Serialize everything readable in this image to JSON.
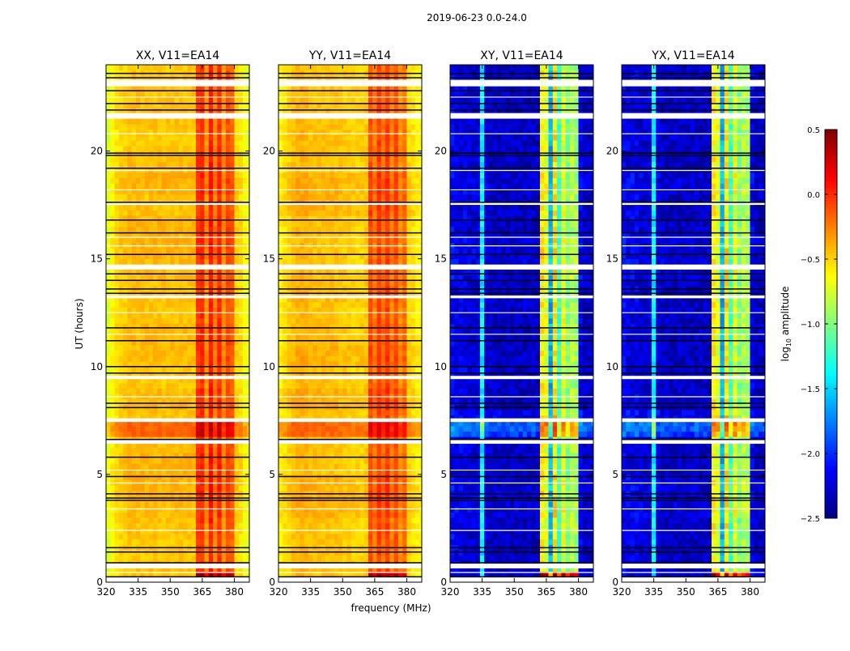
{
  "chart_data": {
    "type": "heatmap",
    "title": "2019-06-23 0.0-24.0",
    "xlabel": "frequency (MHz)",
    "ylabel": "UT (hours)",
    "xlim": [
      320,
      387
    ],
    "ylim": [
      0,
      24
    ],
    "xticks": [
      "320",
      "335",
      "350",
      "365",
      "380"
    ],
    "xtick_values": [
      320,
      335,
      350,
      365,
      380
    ],
    "yticks": [
      "0",
      "5",
      "10",
      "15",
      "20"
    ],
    "ytick_values": [
      0,
      5,
      10,
      15,
      20
    ],
    "freq_bin_centers_mhz": [
      321,
      323,
      325,
      327,
      329,
      331,
      333,
      335,
      337,
      339,
      341,
      343,
      345,
      347,
      349,
      351,
      353,
      355,
      357,
      359,
      361,
      363,
      365,
      367,
      369,
      371,
      373,
      375,
      377,
      379,
      381,
      383,
      385,
      387
    ],
    "time_bin_hours": 0.25,
    "colorbar": {
      "label": "log10 amplitude",
      "label_main": "log",
      "label_sub": "10",
      "label_rest": " amplitude",
      "colormap": "jet",
      "vmin": -2.5,
      "vmax": 0.5,
      "ticks": [
        "0.5",
        "0.0",
        "−0.5",
        "−1.0",
        "−1.5",
        "−2.0",
        "−2.5"
      ],
      "tick_values": [
        0.5,
        0.0,
        -0.5,
        -1.0,
        -1.5,
        -2.0,
        -2.5
      ]
    },
    "flagged_hours": [
      [
        0.0,
        0.24
      ],
      [
        0.64,
        0.86
      ],
      [
        6.42,
        6.6
      ],
      [
        7.43,
        7.6
      ],
      [
        9.42,
        9.57
      ],
      [
        13.17,
        13.3
      ],
      [
        14.56,
        14.7
      ],
      [
        17.5,
        17.6
      ],
      [
        21.58,
        21.76
      ],
      [
        23.1,
        23.3
      ]
    ],
    "black_lines_hours": [
      0.25,
      0.9,
      1.4,
      1.6,
      3.8,
      3.9,
      4.1,
      4.9,
      5.8,
      6.62,
      8.1,
      8.3,
      9.7,
      10.0,
      11.2,
      11.8,
      13.4,
      13.6,
      14.0,
      14.3,
      15.2,
      16.2,
      16.8,
      17.62,
      19.2,
      19.8,
      19.9,
      21.9,
      22.2,
      22.8,
      23.4,
      23.6
    ],
    "white_lines_hours": [
      0.45,
      2.4,
      3.4,
      4.6,
      5.2,
      8.6,
      11.5,
      12.5,
      15.6,
      16.0,
      18.2,
      19.1,
      20.8,
      22.5
    ],
    "panels": [
      {
        "title": "XX, V11=EA14",
        "spectrum": [
          -0.72,
          -0.62,
          -0.55,
          -0.5,
          -0.48,
          -0.45,
          -0.45,
          -0.45,
          -0.45,
          -0.45,
          -0.45,
          -0.45,
          -0.45,
          -0.45,
          -0.45,
          -0.45,
          -0.45,
          -0.45,
          -0.45,
          -0.45,
          -0.45,
          -0.05,
          0.0,
          -0.3,
          0.05,
          -0.25,
          0.0,
          -0.3,
          -0.1,
          -0.15,
          -0.5,
          -0.55,
          -0.65,
          -0.72
        ],
        "hour_offset": [
          0.0,
          -0.02,
          0.0,
          0.02,
          0.05,
          0.05,
          0.02,
          0.0,
          0.02,
          -0.02,
          0.02,
          0.03,
          0.0,
          0.0,
          0.02,
          0.05,
          0.04,
          0.0,
          0.05,
          0.02,
          -0.02,
          0.0,
          0.0,
          -0.02
        ],
        "events": [
          {
            "from": 0.25,
            "to": 0.62,
            "scope": "band",
            "delta": 0.45
          },
          {
            "from": 6.7,
            "to": 7.4,
            "scope": "all",
            "delta": 0.28
          }
        ]
      },
      {
        "title": "YY, V11=EA14",
        "spectrum": [
          -0.6,
          -0.55,
          -0.5,
          -0.45,
          -0.42,
          -0.4,
          -0.42,
          -0.45,
          -0.45,
          -0.45,
          -0.45,
          -0.45,
          -0.45,
          -0.45,
          -0.47,
          -0.48,
          -0.48,
          -0.5,
          -0.5,
          -0.5,
          -0.48,
          -0.1,
          -0.25,
          -0.05,
          -0.2,
          -0.05,
          -0.25,
          -0.1,
          -0.3,
          -0.2,
          -0.5,
          -0.55,
          -0.6,
          -0.62
        ],
        "hour_offset": [
          0.0,
          0.0,
          0.0,
          0.05,
          0.05,
          0.0,
          0.0,
          0.0,
          0.05,
          0.0,
          0.05,
          0.02,
          0.0,
          0.02,
          0.0,
          0.0,
          0.0,
          0.05,
          0.05,
          0.0,
          0.0,
          0.0,
          0.0,
          -0.02
        ],
        "events": [
          {
            "from": 0.25,
            "to": 0.62,
            "scope": "band",
            "delta": 0.45
          },
          {
            "from": 6.7,
            "to": 7.4,
            "scope": "all",
            "delta": 0.28
          }
        ]
      },
      {
        "title": "XY, V11=EA14",
        "spectrum": [
          -2.15,
          -2.2,
          -2.2,
          -2.2,
          -2.25,
          -2.25,
          -2.25,
          -1.4,
          -2.25,
          -2.3,
          -2.3,
          -2.3,
          -2.3,
          -2.3,
          -2.3,
          -2.3,
          -2.3,
          -2.3,
          -2.3,
          -2.3,
          -2.3,
          -0.6,
          -0.7,
          -1.6,
          -0.55,
          -1.2,
          -0.7,
          -1.0,
          -0.85,
          -0.9,
          -2.2,
          -2.3,
          -2.3,
          -2.3
        ],
        "hour_offset": [
          0.0,
          0.0,
          0.0,
          0.05,
          0.05,
          0.0,
          0.0,
          0.1,
          0.0,
          0.0,
          0.0,
          0.0,
          0.0,
          0.0,
          0.05,
          0.05,
          0.0,
          0.0,
          0.05,
          0.0,
          0.0,
          0.0,
          0.0,
          0.0
        ],
        "events": [
          {
            "from": 0.25,
            "to": 0.62,
            "scope": "band",
            "delta": 1.0
          },
          {
            "from": 6.7,
            "to": 7.4,
            "scope": "all",
            "delta": 0.35
          }
        ]
      },
      {
        "title": "YX, V11=EA14",
        "spectrum": [
          -2.15,
          -2.2,
          -2.2,
          -2.2,
          -2.25,
          -2.25,
          -2.25,
          -1.4,
          -2.25,
          -2.3,
          -2.3,
          -2.3,
          -2.3,
          -2.3,
          -2.3,
          -2.3,
          -2.3,
          -2.3,
          -2.3,
          -2.3,
          -2.3,
          -0.6,
          -0.7,
          -1.6,
          -0.55,
          -1.2,
          -0.7,
          -1.0,
          -0.85,
          -0.9,
          -2.2,
          -2.3,
          -2.3,
          -2.3
        ],
        "hour_offset": [
          0.0,
          0.0,
          0.0,
          0.05,
          0.05,
          0.0,
          0.0,
          0.1,
          0.0,
          0.0,
          0.0,
          0.0,
          0.0,
          0.0,
          0.05,
          0.05,
          0.0,
          0.0,
          0.05,
          0.0,
          0.0,
          0.0,
          0.0,
          0.0
        ],
        "events": [
          {
            "from": 0.25,
            "to": 0.62,
            "scope": "band",
            "delta": 1.0
          },
          {
            "from": 6.7,
            "to": 7.4,
            "scope": "all",
            "delta": 0.35
          }
        ]
      }
    ]
  }
}
